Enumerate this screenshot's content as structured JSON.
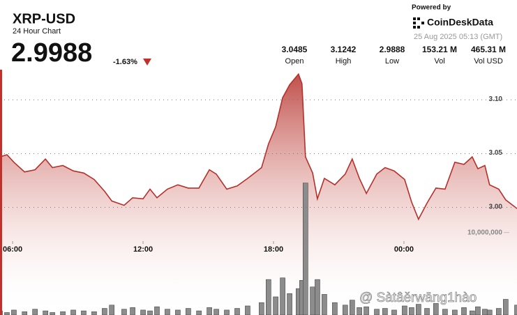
{
  "header": {
    "price": "2.9988",
    "change": "-1.63%",
    "stats": [
      {
        "value": "3.0485",
        "label": "Open"
      },
      {
        "value": "3.1242",
        "label": "High"
      },
      {
        "value": "2.9888",
        "label": "Low"
      },
      {
        "value": "153.21 M",
        "label": "Vol"
      },
      {
        "value": "465.31 M",
        "label": "Vol USD"
      }
    ],
    "powered_by": "Powered by",
    "brand": "CoinDeskData",
    "timestamp": "25 Aug 2025 05:13 (GMT)",
    "watermark": "@ Sàtâěrwāng1hào"
  },
  "chart_data": {
    "type": "line",
    "title": "XRP-USD",
    "subtitle": "24 Hour Chart",
    "x": [
      5.42,
      5.74,
      6.06,
      6.55,
      7.03,
      7.51,
      7.83,
      8.31,
      8.79,
      9.27,
      9.75,
      10.23,
      10.56,
      11.13,
      11.52,
      12.0,
      12.32,
      12.64,
      13.12,
      13.6,
      14.08,
      14.57,
      15.05,
      15.37,
      15.85,
      16.33,
      16.81,
      17.45,
      17.77,
      18.1,
      18.42,
      18.74,
      19.15,
      19.31,
      19.47,
      19.8,
      20.02,
      20.34,
      20.82,
      21.3,
      21.62,
      21.95,
      22.27,
      22.75,
      23.13,
      23.55,
      24.03,
      24.35,
      24.67,
      25.06,
      25.47,
      25.89,
      26.34,
      26.76,
      27.14,
      27.4,
      27.72,
      27.94,
      28.36,
      28.68,
      29.2
    ],
    "xlim": [
      5.42,
      29.2
    ],
    "xticks": [
      {
        "value": 6,
        "label": "06:00"
      },
      {
        "value": 12,
        "label": "12:00"
      },
      {
        "value": 18,
        "label": "18:00"
      },
      {
        "value": 24,
        "label": "00:00"
      }
    ],
    "ylim": [
      2.9,
      3.13
    ],
    "yticks": [
      {
        "value": 3,
        "label": "3.00"
      },
      3.05,
      {
        "value": 3.1,
        "label": "3.10"
      }
    ],
    "y2lim": [
      0,
      30000000
    ],
    "y2ticks": [
      {
        "value": 10000000,
        "label": "10,000,000"
      }
    ],
    "grid": true,
    "series": [
      {
        "color": "#b5302b",
        "values": [
          3.047,
          3.049,
          3.042,
          3.033,
          3.035,
          3.045,
          3.037,
          3.039,
          3.034,
          3.032,
          3.026,
          3.015,
          3.006,
          3.002,
          3.009,
          3.008,
          3.017,
          3.009,
          3.017,
          3.021,
          3.018,
          3.018,
          3.035,
          3.031,
          3.017,
          3.02,
          3.027,
          3.037,
          3.059,
          3.075,
          3.102,
          3.114,
          3.124,
          3.115,
          3.047,
          3.032,
          3.008,
          3.027,
          3.021,
          3.031,
          3.045,
          3.027,
          3.013,
          3.031,
          3.037,
          3.034,
          3.026,
          3.005,
          2.989,
          3.004,
          3.018,
          3.017,
          3.042,
          3.04,
          3.047,
          3.036,
          3.039,
          3.021,
          3.017,
          3.007,
          2.999
        ]
      },
      {
        "type": "bar",
        "axis": "y2",
        "color": "#8c8c8c",
        "values": [
          500000,
          300000,
          600000,
          400000,
          700000,
          500000,
          300000,
          400000,
          600000,
          500000,
          400000,
          800000,
          1200000,
          700000,
          900000,
          600000,
          500000,
          1000000,
          700000,
          600000,
          800000,
          500000,
          900000,
          700000,
          600000,
          800000,
          1100000,
          1500000,
          4300000,
          2200000,
          4500000,
          2600000,
          3200000,
          4200000,
          16000000,
          3400000,
          4300000,
          2500000,
          1500000,
          1200000,
          1800000,
          900000,
          1000000,
          700000,
          800000,
          600000,
          1100000,
          900000,
          1300000,
          800000,
          1400000,
          700000,
          600000,
          900000,
          500000,
          1000000,
          700000,
          600000,
          800000,
          1900000,
          1200000
        ]
      }
    ]
  }
}
